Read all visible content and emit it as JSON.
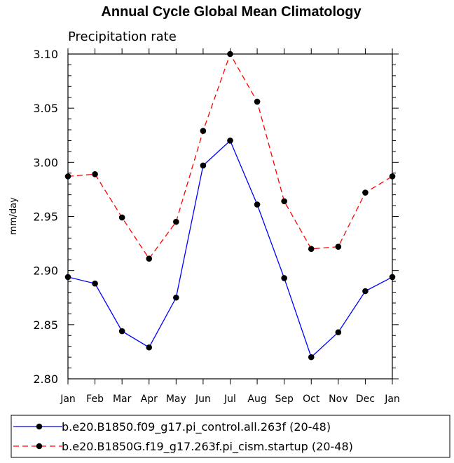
{
  "chart_data": {
    "type": "line",
    "title": "Annual Cycle Global Mean Climatology",
    "subtitle": "Precipitation rate",
    "xlabel": "",
    "ylabel": "mm/day",
    "categories": [
      "Jan",
      "Feb",
      "Mar",
      "Apr",
      "May",
      "Jun",
      "Jul",
      "Aug",
      "Sep",
      "Oct",
      "Nov",
      "Dec",
      "Jan"
    ],
    "ylim": [
      2.8,
      3.1
    ],
    "yticks": [
      "2.80",
      "2.85",
      "2.90",
      "2.95",
      "3.00",
      "3.05",
      "3.10"
    ],
    "series": [
      {
        "name": "b.e20.B1850.f09_g17.pi_control.all.263f (20-48)",
        "color": "#0000ff",
        "dash": "solid",
        "values": [
          2.894,
          2.888,
          2.844,
          2.829,
          2.875,
          2.997,
          3.02,
          2.961,
          2.893,
          2.82,
          2.843,
          2.881,
          2.894
        ]
      },
      {
        "name": "b.e20.B1850G.f19_g17.263f.pi_cism.startup (20-48)",
        "color": "#ff0000",
        "dash": "dashed",
        "values": [
          2.987,
          2.989,
          2.949,
          2.911,
          2.945,
          3.029,
          3.1,
          3.056,
          2.964,
          2.92,
          2.922,
          2.972,
          2.987
        ]
      }
    ]
  }
}
